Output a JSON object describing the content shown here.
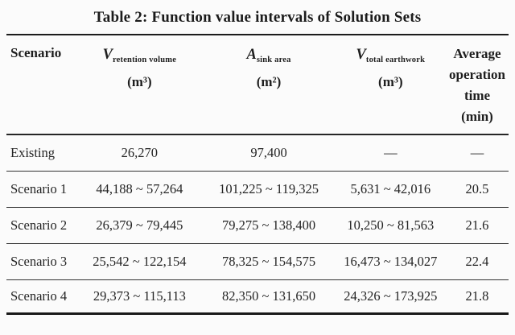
{
  "title": "Table 2: Function value intervals of Solution Sets",
  "table": {
    "headers": {
      "scenario": "Scenario",
      "retention": {
        "symbol": "V",
        "sub": "retention volume",
        "unit": "(m³)"
      },
      "sink": {
        "symbol": "A",
        "sub": "sink area",
        "unit": "(m²)"
      },
      "earthwork": {
        "symbol": "V",
        "sub": "total earthwork",
        "unit": "(m³)"
      },
      "avg_time": "Average\noperation\ntime\n(min)"
    },
    "rows": [
      [
        "Existing",
        "26,270",
        "97,400",
        "—",
        "—"
      ],
      [
        "Scenario 1",
        "44,188 ~ 57,264",
        "101,225 ~ 119,325",
        "5,631 ~ 42,016",
        "20.5"
      ],
      [
        "Scenario 2",
        "26,379 ~ 79,445",
        "79,275 ~ 138,400",
        "10,250 ~ 81,563",
        "21.6"
      ],
      [
        "Scenario 3",
        "25,542 ~ 122,154",
        "78,325 ~ 154,575",
        "16,473 ~ 134,027",
        "22.4"
      ],
      [
        "Scenario 4",
        "29,373 ~ 115,113",
        "82,350 ~ 131,650",
        "24,326 ~ 173,925",
        "21.8"
      ]
    ]
  },
  "colors": {
    "background": "#fbfbfb",
    "text": "#212121",
    "rule_heavy": "#1c1c1c",
    "rule_light": "#333333"
  }
}
